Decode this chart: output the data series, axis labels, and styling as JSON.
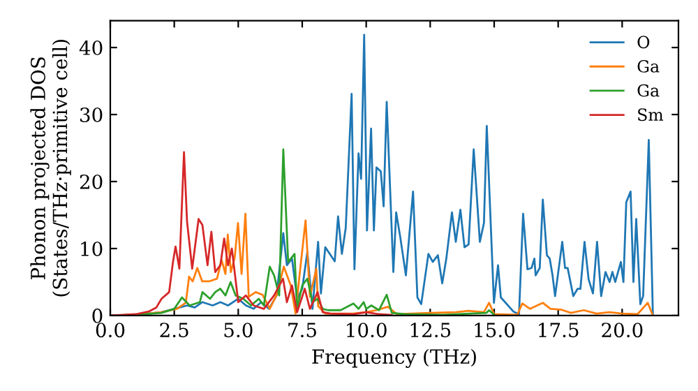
{
  "chart_data": {
    "type": "line",
    "xlabel": "Frequency (THz)",
    "ylabel": "Phonon projected DOS\n(States/THz·primitive cell)",
    "xlim": [
      0,
      22.2
    ],
    "ylim": [
      0,
      44
    ],
    "xticks": [
      {
        "value": 0,
        "label": "0.0"
      },
      {
        "value": 2.5,
        "label": "2.5"
      },
      {
        "value": 5,
        "label": "5.0"
      },
      {
        "value": 7.5,
        "label": "7.5"
      },
      {
        "value": 10,
        "label": "10.0"
      },
      {
        "value": 12.5,
        "label": "12.5"
      },
      {
        "value": 15,
        "label": "15.0"
      },
      {
        "value": 17.5,
        "label": "17.5"
      },
      {
        "value": 20,
        "label": "20.0"
      }
    ],
    "yticks": [
      0,
      10,
      20,
      30,
      40
    ],
    "grid": false,
    "legend": "top right",
    "marker": "none",
    "line_style": "solid",
    "series": [
      {
        "name": "O",
        "color": "#1f77b4",
        "x": [
          0,
          1,
          2,
          2.5,
          3,
          3.3,
          3.6,
          4,
          4.3,
          4.6,
          5,
          5.3,
          5.6,
          5.9,
          6.2,
          6.5,
          6.76,
          6.9,
          7.1,
          7.3,
          7.5,
          7.7,
          7.9,
          8.12,
          8.23,
          8.4,
          8.77,
          8.9,
          9.05,
          9.2,
          9.43,
          9.54,
          9.7,
          9.8,
          9.92,
          10.03,
          10.19,
          10.3,
          10.4,
          10.57,
          10.68,
          10.8,
          11.06,
          11.17,
          11.33,
          11.55,
          11.83,
          12.0,
          12.15,
          12.43,
          12.6,
          12.8,
          12.97,
          13.13,
          13.35,
          13.5,
          13.68,
          13.84,
          14.0,
          14.2,
          14.44,
          14.6,
          14.71,
          14.99,
          15.15,
          15.26,
          15.75,
          15.97,
          16.13,
          16.3,
          16.46,
          16.57,
          16.62,
          16.78,
          16.9,
          17.06,
          17.17,
          17.28,
          17.38,
          17.66,
          17.77,
          17.87,
          18.09,
          18.26,
          18.37,
          18.53,
          18.69,
          18.86,
          19.02,
          19.18,
          19.35,
          19.51,
          19.62,
          19.73,
          19.95,
          20.05,
          20.16,
          20.33,
          20.44,
          20.55,
          20.71,
          20.82,
          21.04,
          21.2
        ],
        "values": [
          0,
          0.1,
          0.5,
          1.0,
          1.5,
          1.2,
          2.0,
          1.5,
          2.0,
          1.5,
          2.5,
          1.5,
          1.0,
          2.0,
          1.0,
          3.0,
          12.3,
          7.5,
          8.5,
          2.5,
          4.0,
          9.5,
          1.0,
          11.0,
          3.3,
          10.2,
          8.1,
          14.8,
          9.2,
          13.1,
          33.1,
          6.9,
          24.2,
          20.4,
          41.9,
          12.7,
          27.9,
          12.7,
          22.1,
          21.5,
          16.3,
          31.9,
          6.5,
          15.4,
          11.7,
          6.0,
          18.5,
          2.7,
          1.7,
          9.2,
          8.0,
          9.0,
          4.8,
          8.5,
          15.4,
          11.0,
          15.8,
          10.2,
          10.6,
          24.8,
          11.0,
          13.8,
          28.3,
          1.9,
          7.5,
          2.7,
          0.6,
          0.2,
          15.2,
          6.9,
          7.1,
          8.5,
          6.0,
          7.1,
          17.3,
          9.0,
          8.5,
          6.0,
          2.9,
          11.0,
          7.1,
          7.1,
          2.9,
          4.0,
          4.0,
          11.0,
          5.4,
          3.3,
          11.0,
          2.9,
          6.5,
          5.0,
          6.5,
          5.0,
          8.0,
          5.0,
          16.9,
          18.5,
          5.0,
          14.4,
          1.7,
          2.9,
          26.2,
          0.2
        ]
      },
      {
        "name": "Ga",
        "color": "#ff7f0e",
        "x": [
          0,
          1,
          2,
          2.6,
          2.95,
          3.08,
          3.22,
          3.4,
          3.59,
          3.86,
          4.17,
          4.35,
          4.5,
          4.59,
          4.71,
          4.86,
          4.99,
          5.13,
          5.28,
          5.41,
          5.68,
          5.95,
          6.23,
          6.5,
          6.78,
          7.05,
          7.24,
          7.4,
          7.63,
          7.8,
          8.05,
          8.12,
          8.4,
          9.5,
          10,
          10.4,
          10.85,
          11.2,
          12.5,
          13.5,
          14,
          14.6,
          14.8,
          15.0,
          15.9,
          16.1,
          16.4,
          16.9,
          17.2,
          17.6,
          18,
          18.5,
          19,
          19.5,
          20,
          20.6,
          21.0,
          21.2
        ],
        "values": [
          0,
          0.1,
          0.5,
          1.0,
          1.9,
          5.8,
          5.1,
          7.1,
          5.1,
          5.1,
          5.5,
          8.3,
          6.2,
          12.1,
          6.5,
          8.6,
          13.8,
          6.2,
          15.2,
          2.8,
          3.5,
          3.1,
          1.0,
          3.1,
          7.3,
          4.5,
          0.3,
          6.2,
          14.2,
          2.8,
          7.0,
          1.4,
          0.3,
          0.3,
          0.5,
          0.8,
          1.3,
          0.2,
          0.4,
          0.5,
          0.7,
          0.5,
          1.9,
          0.2,
          0.1,
          1.8,
          1.0,
          1.9,
          1.0,
          0.9,
          0.4,
          0.8,
          0.3,
          0.5,
          0.3,
          0.2,
          1.9,
          0
        ]
      },
      {
        "name": "Ga",
        "color": "#2ca02c",
        "x": [
          0,
          1,
          2,
          2.5,
          2.8,
          3.1,
          3.5,
          3.6,
          3.9,
          4.1,
          4.3,
          4.5,
          4.7,
          4.9,
          5.2,
          5.5,
          5.8,
          6.0,
          6.23,
          6.4,
          6.6,
          6.76,
          6.95,
          7.2,
          7.3,
          7.5,
          7.7,
          7.9,
          8.1,
          8.3,
          8.5,
          9.0,
          9.5,
          9.7,
          9.9,
          10.0,
          10.2,
          10.5,
          10.8,
          11.0,
          11.5,
          13,
          14.7,
          14.8,
          15
        ],
        "values": [
          0,
          0.1,
          0.4,
          1.0,
          2.7,
          1.5,
          2.0,
          3.5,
          2.5,
          3.5,
          4.0,
          3.0,
          5.0,
          3.0,
          2.5,
          1.5,
          2.5,
          1.5,
          7.3,
          6.0,
          3.0,
          24.8,
          8.0,
          9.2,
          1.0,
          4.5,
          5.5,
          2.0,
          2.5,
          1.0,
          0.8,
          0.8,
          1.8,
          1.0,
          2.0,
          1.0,
          1.5,
          0.8,
          3.1,
          0.4,
          0.2,
          0.1,
          0.4,
          0.8,
          0.1
        ]
      },
      {
        "name": "Sm",
        "color": "#d62728",
        "x": [
          0,
          1,
          1.5,
          1.8,
          2.0,
          2.3,
          2.45,
          2.55,
          2.7,
          2.88,
          3.0,
          3.2,
          3.45,
          3.6,
          3.8,
          3.95,
          4.1,
          4.3,
          4.45,
          4.6,
          4.75,
          5.0,
          5.3,
          5.6,
          6.0,
          6.4,
          6.75,
          6.9,
          7.1,
          7.3,
          7.6,
          7.8,
          8.1,
          8.3,
          8.6,
          9.5,
          10.0,
          10.5,
          11
        ],
        "values": [
          0,
          0.2,
          0.6,
          1.2,
          2.5,
          3.5,
          8.0,
          10.3,
          7.0,
          24.4,
          14.0,
          7.0,
          14.4,
          13.5,
          7.5,
          12.5,
          6.5,
          7.5,
          11.5,
          7.5,
          10.0,
          2.0,
          3.0,
          1.5,
          1.0,
          3.0,
          5.5,
          2.0,
          4.5,
          0.5,
          4.0,
          1.0,
          3.5,
          0.5,
          0.3,
          0.2,
          0.5,
          0.2,
          0.1
        ]
      }
    ]
  }
}
